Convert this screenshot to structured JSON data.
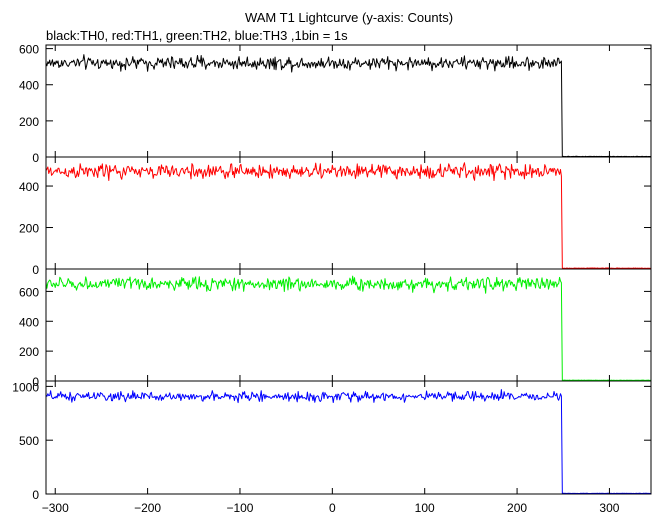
{
  "chart_data": {
    "type": "line",
    "title": "WAM T1 Lightcurve (y-axis: Counts)",
    "subtitle": "black:TH0, red:TH1, green:TH2, blue:TH3 ,1bin = 1s",
    "xlim": [
      -310,
      345
    ],
    "x_ticks": [
      -300,
      -200,
      -100,
      0,
      100,
      200,
      300
    ],
    "grid": false,
    "panels": [
      {
        "series": "TH0",
        "color": "#000000",
        "ylim": [
          0,
          620
        ],
        "y_ticks": [
          0,
          200,
          400,
          600
        ],
        "mean_before": 520,
        "noise": 18,
        "mean_after": 3,
        "drop_x": 249
      },
      {
        "series": "TH1",
        "color": "#ff0000",
        "ylim": [
          0,
          540
        ],
        "y_ticks": [
          0,
          200,
          400
        ],
        "mean_before": 470,
        "noise": 18,
        "mean_after": 4,
        "drop_x": 249
      },
      {
        "series": "TH2",
        "color": "#00ee00",
        "ylim": [
          0,
          750
        ],
        "y_ticks": [
          0,
          200,
          400,
          600
        ],
        "mean_before": 650,
        "noise": 22,
        "mean_after": 5,
        "drop_x": 249
      },
      {
        "series": "TH3",
        "color": "#0000ff",
        "ylim": [
          0,
          1050
        ],
        "y_ticks": [
          0,
          500,
          1000
        ],
        "mean_before": 905,
        "noise": 22,
        "mean_after": 6,
        "drop_x": 249
      }
    ]
  }
}
